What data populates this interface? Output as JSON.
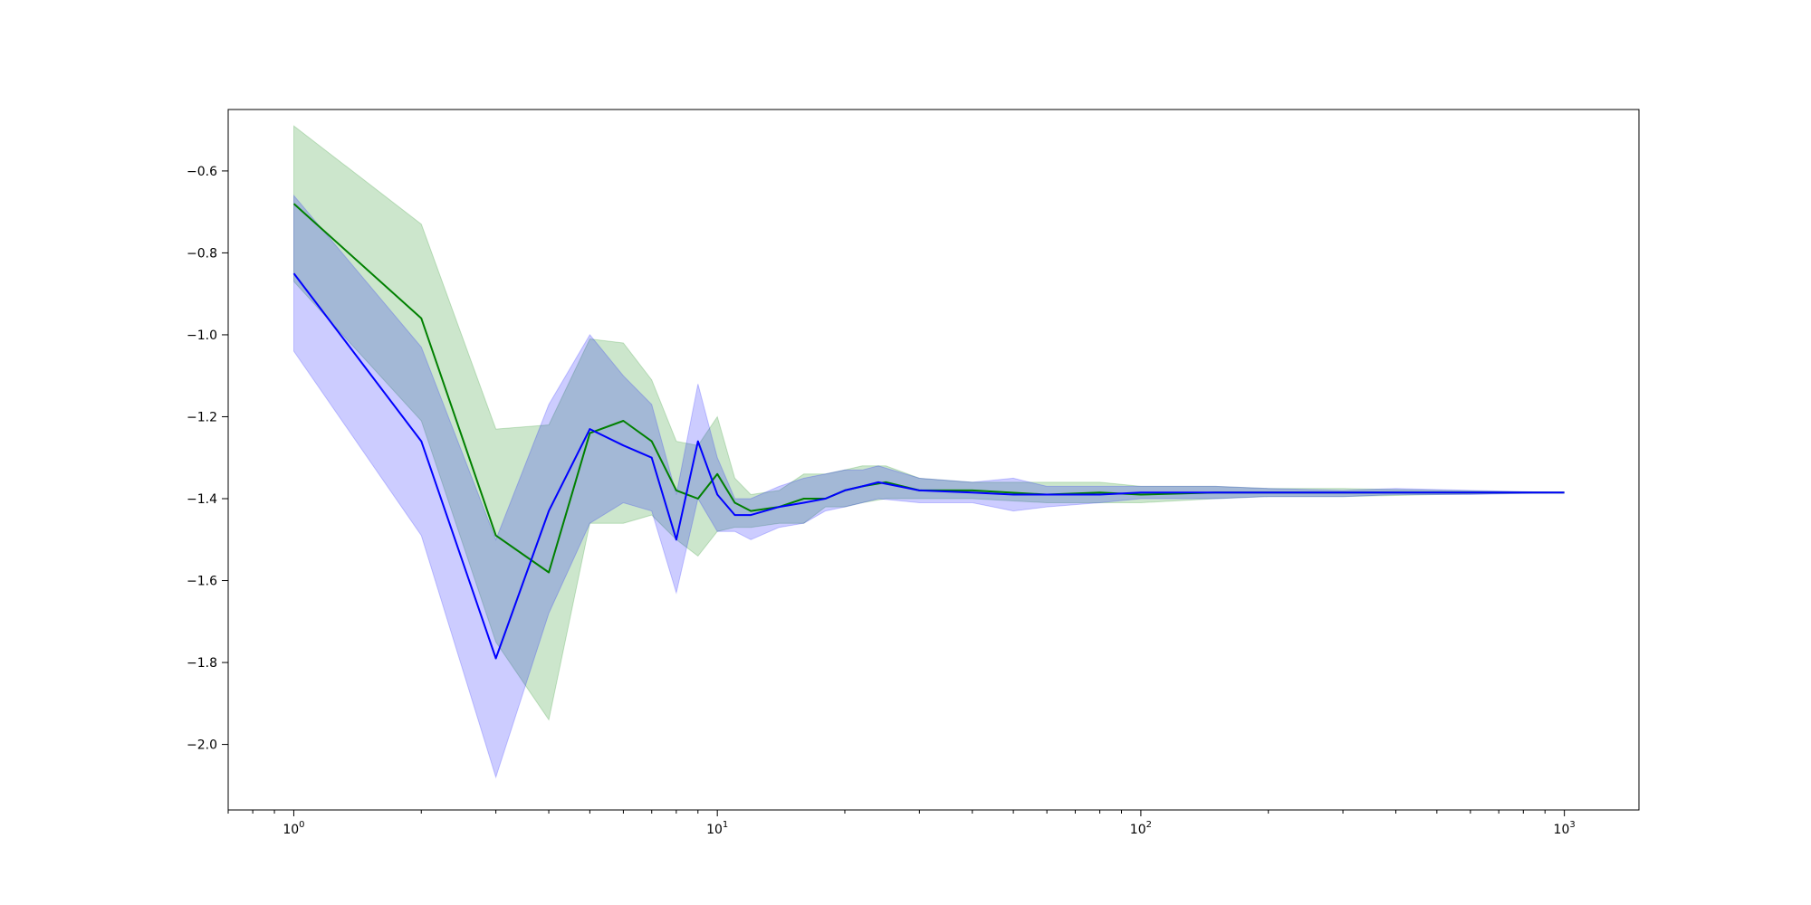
{
  "chart_data": {
    "type": "line",
    "title": "",
    "xlabel": "",
    "ylabel": "",
    "xscale": "log",
    "xlim": [
      0.7,
      1500
    ],
    "ylim": [
      -2.16,
      -0.45
    ],
    "grid": false,
    "legend": "none",
    "x_ticks": [
      {
        "value": 1,
        "base": "10",
        "exp": "0"
      },
      {
        "value": 10,
        "base": "10",
        "exp": "1"
      },
      {
        "value": 100,
        "base": "10",
        "exp": "2"
      },
      {
        "value": 1000,
        "base": "10",
        "exp": "3"
      }
    ],
    "y_ticks": [
      {
        "value": -0.6,
        "label": "−0.6"
      },
      {
        "value": -0.8,
        "label": "−0.8"
      },
      {
        "value": -1.0,
        "label": "−1.0"
      },
      {
        "value": -1.2,
        "label": "−1.2"
      },
      {
        "value": -1.4,
        "label": "−1.4"
      },
      {
        "value": -1.6,
        "label": "−1.6"
      },
      {
        "value": -1.8,
        "label": "−1.8"
      },
      {
        "value": -2.0,
        "label": "−2.0"
      }
    ],
    "series": [
      {
        "color": "#008000",
        "band_color": "#008000",
        "band_opacity": 0.2,
        "x": [
          1,
          2,
          3,
          4,
          5,
          6,
          7,
          8,
          9,
          10,
          11,
          12,
          14,
          16,
          18,
          20,
          22,
          25,
          30,
          40,
          60,
          80,
          100,
          150,
          200,
          300,
          500,
          1000
        ],
        "y": [
          -0.68,
          -0.96,
          -1.49,
          -1.58,
          -1.24,
          -1.21,
          -1.26,
          -1.38,
          -1.4,
          -1.34,
          -1.41,
          -1.43,
          -1.42,
          -1.4,
          -1.4,
          -1.38,
          -1.37,
          -1.36,
          -1.38,
          -1.38,
          -1.39,
          -1.385,
          -1.39,
          -1.385,
          -1.385,
          -1.385,
          -1.385,
          -1.385
        ],
        "upper": [
          -0.49,
          -0.73,
          -1.23,
          -1.22,
          -1.01,
          -1.02,
          -1.11,
          -1.26,
          -1.27,
          -1.2,
          -1.35,
          -1.39,
          -1.38,
          -1.34,
          -1.34,
          -1.33,
          -1.32,
          -1.32,
          -1.35,
          -1.36,
          -1.36,
          -1.36,
          -1.37,
          -1.37,
          -1.375,
          -1.375,
          -1.38,
          -1.385
        ],
        "lower": [
          -0.87,
          -1.21,
          -1.75,
          -1.94,
          -1.46,
          -1.46,
          -1.44,
          -1.5,
          -1.54,
          -1.48,
          -1.47,
          -1.47,
          -1.46,
          -1.46,
          -1.42,
          -1.42,
          -1.41,
          -1.4,
          -1.4,
          -1.4,
          -1.41,
          -1.41,
          -1.41,
          -1.4,
          -1.395,
          -1.395,
          -1.39,
          -1.385
        ]
      },
      {
        "color": "#0000ff",
        "band_color": "#0000ff",
        "band_opacity": 0.2,
        "x": [
          1,
          2,
          3,
          4,
          5,
          6,
          7,
          8,
          9,
          10,
          11,
          12,
          14,
          16,
          18,
          20,
          22,
          24,
          30,
          40,
          50,
          60,
          80,
          100,
          150,
          200,
          300,
          400,
          600,
          1000
        ],
        "y": [
          -0.85,
          -1.26,
          -1.79,
          -1.43,
          -1.23,
          -1.27,
          -1.3,
          -1.5,
          -1.26,
          -1.39,
          -1.44,
          -1.44,
          -1.42,
          -1.41,
          -1.4,
          -1.38,
          -1.37,
          -1.36,
          -1.38,
          -1.385,
          -1.39,
          -1.39,
          -1.39,
          -1.385,
          -1.385,
          -1.385,
          -1.385,
          -1.385,
          -1.385,
          -1.385
        ],
        "upper": [
          -0.66,
          -1.03,
          -1.5,
          -1.17,
          -1.0,
          -1.1,
          -1.17,
          -1.39,
          -1.12,
          -1.3,
          -1.4,
          -1.4,
          -1.37,
          -1.35,
          -1.34,
          -1.33,
          -1.33,
          -1.32,
          -1.35,
          -1.36,
          -1.35,
          -1.37,
          -1.37,
          -1.37,
          -1.37,
          -1.375,
          -1.38,
          -1.375,
          -1.38,
          -1.385
        ],
        "lower": [
          -1.04,
          -1.49,
          -2.08,
          -1.68,
          -1.46,
          -1.41,
          -1.43,
          -1.63,
          -1.4,
          -1.48,
          -1.48,
          -1.5,
          -1.47,
          -1.46,
          -1.43,
          -1.42,
          -1.41,
          -1.4,
          -1.41,
          -1.41,
          -1.43,
          -1.42,
          -1.41,
          -1.4,
          -1.4,
          -1.395,
          -1.395,
          -1.39,
          -1.39,
          -1.385
        ]
      }
    ]
  }
}
